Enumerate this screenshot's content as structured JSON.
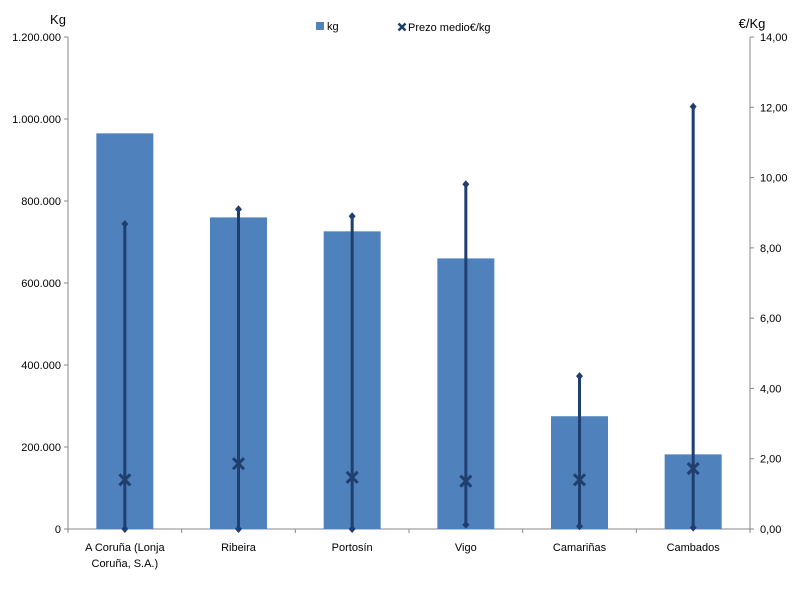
{
  "chart_data": {
    "type": "bar",
    "title": "",
    "categories": [
      "A Coruña (Lonja Coruña, S.A.)",
      "Ribeira",
      "Portosín",
      "Vigo",
      "Camariñas",
      "Cambados"
    ],
    "category_lines": [
      [
        "A Coruña (Lonja",
        "Coruña, S.A.)"
      ],
      [
        "Ribeira"
      ],
      [
        "Portosín"
      ],
      [
        "Vigo"
      ],
      [
        "Camariñas"
      ],
      [
        "Cambados"
      ]
    ],
    "series": [
      {
        "name": "kg",
        "axis": "left",
        "kind": "bar",
        "color": "#4F81BD",
        "values": [
          965000,
          760000,
          726000,
          660000,
          275000,
          182000
        ]
      },
      {
        "name": "Prezo medio€/kg",
        "axis": "right",
        "kind": "marker",
        "color": "#1F3F6E",
        "values": [
          1.4,
          1.86,
          1.47,
          1.36,
          1.4,
          1.72
        ],
        "range_high": [
          8.68,
          9.1,
          8.9,
          9.81,
          4.35,
          12.02
        ],
        "range_low": [
          0.0,
          0.0,
          0.0,
          0.12,
          0.08,
          0.04
        ]
      }
    ],
    "left_axis": {
      "label": "Kg",
      "min": 0,
      "max": 1200000,
      "step": 200000,
      "tick_labels": [
        "0",
        "200.000",
        "400.000",
        "600.000",
        "800.000",
        "1.000.000",
        "1.200.000"
      ]
    },
    "right_axis": {
      "label": "€/Kg",
      "min": 0,
      "max": 14,
      "step": 2,
      "tick_labels": [
        "0,00",
        "2,00",
        "4,00",
        "6,00",
        "8,00",
        "10,00",
        "12,00",
        "14,00"
      ]
    },
    "legend": {
      "position": "top",
      "entries": [
        "kg",
        "Prezo medio€/kg"
      ]
    },
    "grid": false
  }
}
